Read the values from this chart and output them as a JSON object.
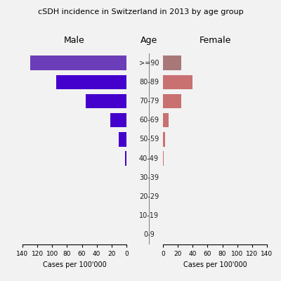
{
  "title": "cSDH incidence in Switzerland in 2013 by age group",
  "age_groups": [
    "0-9",
    "10-19",
    "20-29",
    "30-39",
    "40-49",
    "50-59",
    "60-69",
    "70-79",
    "80-89",
    ">=90"
  ],
  "male_values": [
    0,
    0,
    0,
    0,
    2,
    10,
    22,
    55,
    95,
    130
  ],
  "female_values": [
    0,
    0,
    0,
    0,
    1,
    3,
    8,
    25,
    40,
    25
  ],
  "male_colors": [
    "#4400CC",
    "#4400CC",
    "#4400CC",
    "#4400CC",
    "#4400CC",
    "#4400CC",
    "#4400CC",
    "#4400CC",
    "#4400CC",
    "#6B3DB8"
  ],
  "female_colors": [
    "#C97070",
    "#C97070",
    "#C97070",
    "#C97070",
    "#C97070",
    "#C97070",
    "#C97070",
    "#C97070",
    "#C97070",
    "#A87878"
  ],
  "xlabel_left": "Cases per 100'000",
  "xlabel_right": "Cases per 100'000",
  "label_male": "Male",
  "label_age": "Age",
  "label_female": "Female",
  "xlim": 140,
  "background_color": "#f2f2f2",
  "bar_height": 0.75,
  "xticks": [
    0,
    20,
    40,
    60,
    80,
    100,
    120,
    140
  ],
  "xticklabels": [
    "0",
    "20",
    "40",
    "60",
    "80",
    "100",
    "120",
    "140"
  ]
}
